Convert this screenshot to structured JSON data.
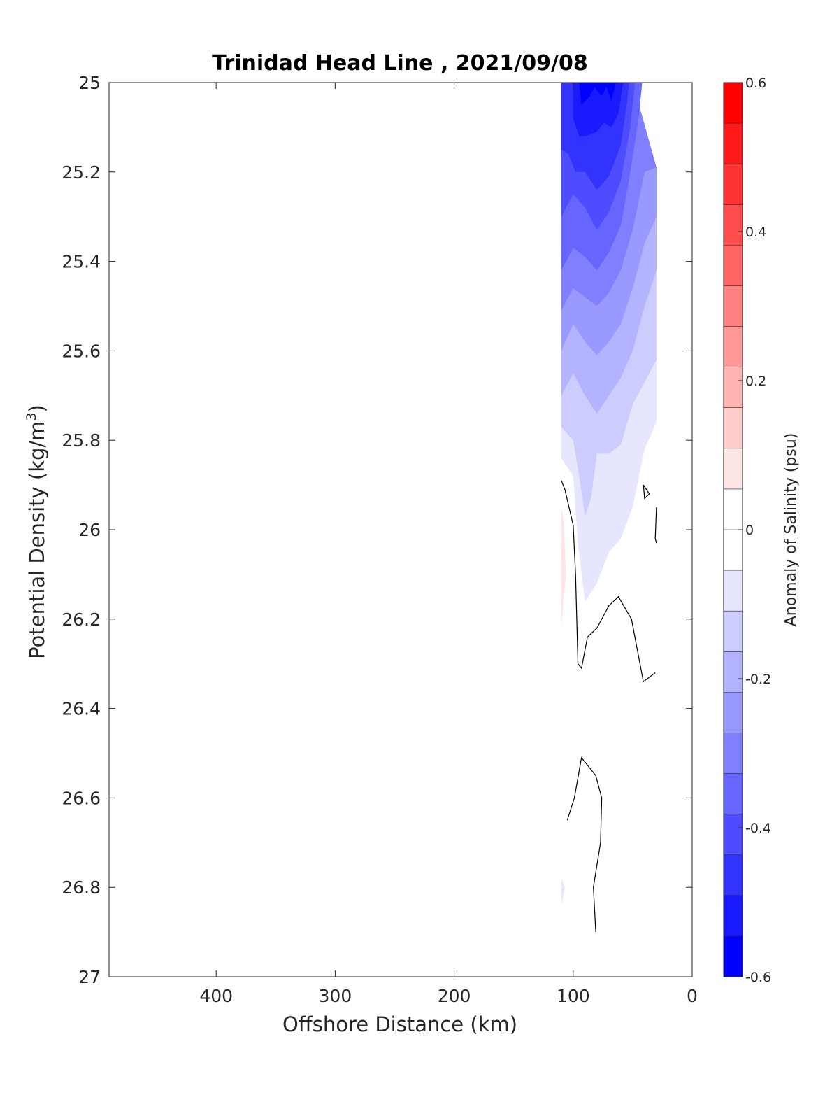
{
  "chart_data": {
    "type": "heatmap",
    "subtype": "filled-contour section",
    "title": "Trinidad Head Line , 2021/09/08",
    "xlabel": "Offshore Distance (km)",
    "ylabel_main": "Potential Density (kg/m",
    "ylabel_sup": "3",
    "ylabel_close": ")",
    "xlim": [
      490,
      0
    ],
    "ylim": [
      25,
      27
    ],
    "x_reversed": true,
    "y_reversed": true,
    "xticks": [
      400,
      300,
      200,
      100,
      0
    ],
    "yticks": [
      25,
      25.2,
      25.4,
      25.6,
      25.8,
      26,
      26.2,
      26.4,
      26.6,
      26.8,
      27
    ],
    "ytick_labels": [
      "25",
      "25.2",
      "25.4",
      "25.6",
      "25.8",
      "26",
      "26.2",
      "26.4",
      "26.6",
      "26.8",
      "27"
    ],
    "colorbar": {
      "label": "Anomaly of Salinity (psu)",
      "range": [
        -0.6,
        0.6
      ],
      "step": 0.05,
      "ticks": [
        0.6,
        0.4,
        0.2,
        0,
        -0.2,
        -0.4,
        -0.6
      ],
      "tick_labels": [
        "0.6",
        "0.4",
        "0.2",
        "0",
        "-0.2",
        "-0.4",
        "-0.6"
      ],
      "colors_top_to_bottom": [
        "#ff0000",
        "#ff1a1a",
        "#ff3333",
        "#ff4d4d",
        "#ff6666",
        "#ff8080",
        "#ff9999",
        "#ffb3b3",
        "#ffcccc",
        "#ffe6e6",
        "#ffffff",
        "#ffffff",
        "#e6e6ff",
        "#ccccff",
        "#b3b3ff",
        "#9999ff",
        "#8080ff",
        "#6666ff",
        "#4d4dff",
        "#3333ff",
        "#1a1aff",
        "#0000ff"
      ]
    },
    "stations_x": [
      110,
      100,
      90,
      80,
      70,
      60,
      50,
      40,
      30
    ],
    "anomaly_bands": [
      {
        "level": -0.05,
        "color": "#e6e6ff",
        "points": [
          [
            110,
            25
          ],
          [
            110,
            25.84
          ],
          [
            100,
            25.88
          ],
          [
            96,
            26.03
          ],
          [
            92,
            26.12
          ],
          [
            90,
            26.16
          ],
          [
            80,
            26.12
          ],
          [
            70,
            26.05
          ],
          [
            60,
            26.02
          ],
          [
            50,
            25.95
          ],
          [
            40,
            25.82
          ],
          [
            30,
            25.76
          ],
          [
            30,
            25.19
          ],
          [
            50,
            25
          ]
        ]
      },
      {
        "level": -0.1,
        "color": "#ccccff",
        "points": [
          [
            110,
            25
          ],
          [
            110,
            25.77
          ],
          [
            100,
            25.8
          ],
          [
            95,
            25.88
          ],
          [
            90,
            25.97
          ],
          [
            85,
            25.93
          ],
          [
            80,
            25.83
          ],
          [
            70,
            25.83
          ],
          [
            60,
            25.81
          ],
          [
            50,
            25.72
          ],
          [
            40,
            25.67
          ],
          [
            30,
            25.62
          ],
          [
            30,
            25.19
          ],
          [
            50,
            25
          ]
        ]
      },
      {
        "level": -0.15,
        "color": "#b3b3ff",
        "points": [
          [
            110,
            25
          ],
          [
            110,
            25.7
          ],
          [
            100,
            25.65
          ],
          [
            90,
            25.7
          ],
          [
            80,
            25.74
          ],
          [
            70,
            25.7
          ],
          [
            60,
            25.66
          ],
          [
            50,
            25.6
          ],
          [
            40,
            25.5
          ],
          [
            30,
            25.42
          ],
          [
            30,
            25.19
          ],
          [
            50,
            25
          ]
        ]
      },
      {
        "level": -0.2,
        "color": "#9999ff",
        "points": [
          [
            110,
            25
          ],
          [
            110,
            25.6
          ],
          [
            100,
            25.54
          ],
          [
            90,
            25.58
          ],
          [
            80,
            25.61
          ],
          [
            70,
            25.58
          ],
          [
            60,
            25.54
          ],
          [
            50,
            25.46
          ],
          [
            40,
            25.36
          ],
          [
            30,
            25.3
          ],
          [
            30,
            25.19
          ],
          [
            50,
            25
          ]
        ]
      },
      {
        "level": -0.25,
        "color": "#8080ff",
        "points": [
          [
            110,
            25
          ],
          [
            110,
            25.51
          ],
          [
            100,
            25.46
          ],
          [
            90,
            25.48
          ],
          [
            80,
            25.5
          ],
          [
            70,
            25.47
          ],
          [
            60,
            25.42
          ],
          [
            50,
            25.33
          ],
          [
            40,
            25.2
          ],
          [
            30,
            25.19
          ],
          [
            50,
            25
          ]
        ]
      },
      {
        "level": -0.3,
        "color": "#6666ff",
        "points": [
          [
            110,
            25
          ],
          [
            110,
            25.42
          ],
          [
            100,
            25.37
          ],
          [
            90,
            25.39
          ],
          [
            80,
            25.42
          ],
          [
            70,
            25.38
          ],
          [
            60,
            25.32
          ],
          [
            52,
            25.2
          ],
          [
            45,
            25.08
          ],
          [
            42,
            25
          ],
          [
            50,
            25
          ]
        ]
      },
      {
        "level": -0.35,
        "color": "#4d4dff",
        "points": [
          [
            110,
            25
          ],
          [
            110,
            25.3
          ],
          [
            100,
            25.25
          ],
          [
            90,
            25.28
          ],
          [
            80,
            25.33
          ],
          [
            70,
            25.29
          ],
          [
            60,
            25.22
          ],
          [
            52,
            25.1
          ],
          [
            48,
            25
          ]
        ]
      },
      {
        "level": -0.4,
        "color": "#3333ff",
        "points": [
          [
            110,
            25
          ],
          [
            110,
            25.15
          ],
          [
            104,
            25.16
          ],
          [
            98,
            25.2
          ],
          [
            90,
            25.2
          ],
          [
            80,
            25.24
          ],
          [
            70,
            25.21
          ],
          [
            60,
            25.14
          ],
          [
            55,
            25.05
          ],
          [
            53,
            25
          ]
        ]
      },
      {
        "level": -0.45,
        "color": "#1a1aff",
        "points": [
          [
            100,
            25
          ],
          [
            100,
            25.08
          ],
          [
            95,
            25.12
          ],
          [
            90,
            25.12
          ],
          [
            80,
            25.11
          ],
          [
            74,
            25.09
          ],
          [
            68,
            25.1
          ],
          [
            62,
            25.07
          ],
          [
            58,
            25
          ]
        ]
      },
      {
        "level": -0.5,
        "color": "#0000ff",
        "points": [
          [
            95,
            25
          ],
          [
            93,
            25.05
          ],
          [
            86,
            25.03
          ],
          [
            82,
            25.01
          ],
          [
            76,
            25.03
          ],
          [
            72,
            25.01
          ],
          [
            68,
            25.04
          ],
          [
            64,
            25
          ]
        ]
      },
      {
        "level": 0.05,
        "color": "#ffe6e6",
        "points": [
          [
            110,
            25.95
          ],
          [
            108,
            25.98
          ],
          [
            106,
            26.1
          ],
          [
            108,
            26.15
          ],
          [
            110,
            26.22
          ]
        ]
      },
      {
        "level": -0.05,
        "color": "#e6e6ff",
        "points": [
          [
            110,
            26.78
          ],
          [
            107,
            26.8
          ],
          [
            110,
            26.84
          ]
        ]
      }
    ],
    "zero_contours": [
      [
        [
          110,
          25.89
        ],
        [
          107,
          25.91
        ],
        [
          100,
          25.99
        ],
        [
          98,
          26.1
        ],
        [
          96,
          26.3
        ],
        [
          93,
          26.31
        ],
        [
          88,
          26.24
        ],
        [
          80,
          26.22
        ],
        [
          70,
          26.17
        ],
        [
          62,
          26.15
        ],
        [
          51,
          26.2
        ],
        [
          41,
          26.34
        ],
        [
          31,
          26.32
        ]
      ],
      [
        [
          41,
          25.9
        ],
        [
          36,
          25.92
        ],
        [
          40,
          25.93
        ],
        [
          41,
          25.9
        ]
      ],
      [
        [
          30,
          25.95
        ],
        [
          31,
          26.02
        ],
        [
          30,
          26.03
        ]
      ],
      [
        [
          105,
          26.65
        ],
        [
          99,
          26.6
        ],
        [
          93,
          26.51
        ],
        [
          81,
          26.55
        ],
        [
          76,
          26.6
        ],
        [
          77,
          26.7
        ],
        [
          83,
          26.8
        ],
        [
          81,
          26.9
        ]
      ]
    ]
  }
}
